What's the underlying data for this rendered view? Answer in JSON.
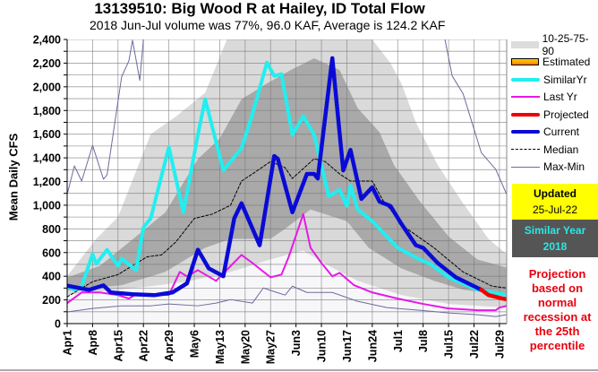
{
  "chart_data": {
    "type": "line",
    "title": "13139510: Big Wood R at Hailey, ID Total Flow",
    "subtitle": "2018 Jun-Jul volume was 77%, 96.0 KAF, Average is 124.2 KAF",
    "ylabel": "Mean Daily CFS",
    "xlabel": "",
    "x_unit": "days since Apr 1",
    "xlim": [
      0,
      121
    ],
    "ylim": [
      0,
      2400
    ],
    "y_ticks": [
      "0",
      "200",
      "400",
      "600",
      "800",
      "1,000",
      "1,200",
      "1,400",
      "1,600",
      "1,800",
      "2,000",
      "2,200",
      "2,400"
    ],
    "x_ticks": [
      "Apr1",
      "Apr8",
      "Apr15",
      "Apr22",
      "Apr29",
      "May6",
      "May13",
      "May20",
      "May27",
      "Jun3",
      "Jun10",
      "Jun17",
      "Jun24",
      "Jul1",
      "Jul8",
      "Jul15",
      "Jul22",
      "Jul29"
    ],
    "grid": true,
    "legend_position": "right",
    "bands": {
      "p10": [
        [
          0,
          241
        ],
        [
          23,
          316
        ],
        [
          33,
          354
        ],
        [
          45,
          436
        ],
        [
          56,
          542
        ],
        [
          65,
          617
        ],
        [
          72,
          489
        ],
        [
          80,
          361
        ],
        [
          92,
          241
        ],
        [
          105,
          166
        ],
        [
          121,
          135
        ]
      ],
      "p25": [
        [
          0,
          278
        ],
        [
          15,
          324
        ],
        [
          27,
          436
        ],
        [
          38,
          640
        ],
        [
          45,
          715
        ],
        [
          56,
          715
        ],
        [
          60,
          800
        ],
        [
          67,
          963
        ],
        [
          77,
          865
        ],
        [
          83,
          640
        ],
        [
          92,
          466
        ],
        [
          101,
          361
        ],
        [
          109,
          286
        ],
        [
          121,
          241
        ]
      ],
      "p75": [
        [
          0,
          390
        ],
        [
          9,
          489
        ],
        [
          19,
          737
        ],
        [
          27,
          940
        ],
        [
          36,
          1392
        ],
        [
          42,
          1565
        ],
        [
          48,
          1896
        ],
        [
          55,
          2030
        ],
        [
          62,
          2150
        ],
        [
          68,
          2242
        ],
        [
          75,
          2144
        ],
        [
          80,
          1821
        ],
        [
          86,
          1618
        ],
        [
          90,
          1340
        ],
        [
          97,
          1038
        ],
        [
          105,
          737
        ],
        [
          113,
          542
        ],
        [
          121,
          474
        ]
      ],
      "p90": [
        [
          0,
          400
        ],
        [
          8,
          715
        ],
        [
          14,
          900
        ],
        [
          23,
          1600
        ],
        [
          30,
          1750
        ],
        [
          38,
          1950
        ],
        [
          44,
          2400
        ],
        [
          84,
          2400
        ],
        [
          89,
          2200
        ],
        [
          92,
          2030
        ],
        [
          96,
          1700
        ],
        [
          102,
          1340
        ],
        [
          109,
          1016
        ],
        [
          116,
          715
        ],
        [
          121,
          587
        ]
      ]
    },
    "series": [
      {
        "name": "Max-Min",
        "role": "max",
        "color": "#6b6b9a",
        "points": [
          [
            0,
            1091
          ],
          [
            2,
            1332
          ],
          [
            4,
            1204
          ],
          [
            7,
            1505
          ],
          [
            10,
            1219
          ],
          [
            11,
            1257
          ],
          [
            15,
            2084
          ],
          [
            17,
            2220
          ],
          [
            18,
            2393
          ],
          [
            20,
            2054
          ],
          [
            21,
            2400
          ],
          [
            22,
            2600
          ],
          [
            103,
            2600
          ],
          [
            104,
            2400
          ],
          [
            106,
            2092
          ],
          [
            109,
            1941
          ],
          [
            114,
            1445
          ],
          [
            118,
            1302
          ],
          [
            121,
            1091
          ]
        ]
      },
      {
        "name": "Max-Min",
        "role": "min",
        "color": "#6b6b9a",
        "points": [
          [
            0,
            98
          ],
          [
            7,
            128
          ],
          [
            15,
            150
          ],
          [
            23,
            150
          ],
          [
            28,
            166
          ],
          [
            36,
            150
          ],
          [
            41,
            173
          ],
          [
            45,
            203
          ],
          [
            51,
            173
          ],
          [
            54,
            301
          ],
          [
            58,
            260
          ],
          [
            60,
            241
          ],
          [
            62,
            316
          ],
          [
            66,
            263
          ],
          [
            73,
            263
          ],
          [
            80,
            188
          ],
          [
            88,
            135
          ],
          [
            97,
            113
          ],
          [
            105,
            90
          ],
          [
            113,
            75
          ],
          [
            118,
            60
          ],
          [
            121,
            75
          ]
        ]
      },
      {
        "name": "Median",
        "color": "#000000",
        "points": [
          [
            0,
            226
          ],
          [
            7,
            354
          ],
          [
            14,
            414
          ],
          [
            22,
            564
          ],
          [
            26,
            580
          ],
          [
            30,
            692
          ],
          [
            35,
            888
          ],
          [
            40,
            925
          ],
          [
            45,
            1000
          ],
          [
            48,
            1204
          ],
          [
            51,
            1264
          ],
          [
            56,
            1369
          ],
          [
            60,
            1317
          ],
          [
            62,
            1226
          ],
          [
            68,
            1392
          ],
          [
            71,
            1369
          ],
          [
            75,
            1264
          ],
          [
            78,
            1204
          ],
          [
            84,
            1204
          ],
          [
            87,
            1038
          ],
          [
            93,
            813
          ],
          [
            101,
            640
          ],
          [
            109,
            436
          ],
          [
            117,
            316
          ],
          [
            121,
            301
          ]
        ]
      },
      {
        "name": "Last Yr",
        "color": "#e619e6",
        "points": [
          [
            0,
            173
          ],
          [
            4,
            263
          ],
          [
            9,
            263
          ],
          [
            14,
            241
          ],
          [
            17,
            211
          ],
          [
            19,
            248
          ],
          [
            23,
            248
          ],
          [
            28,
            241
          ],
          [
            31,
            436
          ],
          [
            33,
            399
          ],
          [
            36,
            451
          ],
          [
            41,
            361
          ],
          [
            48,
            580
          ],
          [
            51,
            512
          ],
          [
            56,
            391
          ],
          [
            59,
            414
          ],
          [
            61,
            564
          ],
          [
            65,
            925
          ],
          [
            67,
            640
          ],
          [
            70,
            512
          ],
          [
            73,
            399
          ],
          [
            75,
            429
          ],
          [
            79,
            324
          ],
          [
            84,
            263
          ],
          [
            91,
            211
          ],
          [
            98,
            166
          ],
          [
            105,
            128
          ],
          [
            113,
            113
          ],
          [
            118,
            113
          ],
          [
            119,
            135
          ],
          [
            121,
            150
          ]
        ]
      },
      {
        "name": "SimilarYr",
        "color": "#22eef0",
        "points": [
          [
            0,
            316
          ],
          [
            2,
            285
          ],
          [
            4,
            316
          ],
          [
            7,
            587
          ],
          [
            8,
            504
          ],
          [
            11,
            624
          ],
          [
            14,
            489
          ],
          [
            15,
            549
          ],
          [
            19,
            451
          ],
          [
            21,
            813
          ],
          [
            23,
            888
          ],
          [
            28,
            1490
          ],
          [
            32,
            940
          ],
          [
            36,
            1595
          ],
          [
            38,
            1896
          ],
          [
            43,
            1294
          ],
          [
            48,
            1482
          ],
          [
            51,
            1768
          ],
          [
            55,
            2205
          ],
          [
            57,
            2092
          ],
          [
            59,
            2107
          ],
          [
            62,
            1595
          ],
          [
            65,
            1753
          ],
          [
            68,
            1595
          ],
          [
            72,
            1076
          ],
          [
            75,
            1129
          ],
          [
            77,
            993
          ],
          [
            78,
            1166
          ],
          [
            80,
            963
          ],
          [
            84,
            865
          ],
          [
            91,
            640
          ],
          [
            97,
            542
          ],
          [
            100,
            504
          ],
          [
            105,
            391
          ],
          [
            113,
            286
          ],
          [
            121,
            241
          ]
        ]
      },
      {
        "name": "Current",
        "color": "#0a0ad6",
        "points": [
          [
            0,
            320
          ],
          [
            6,
            285
          ],
          [
            10,
            323
          ],
          [
            12,
            263
          ],
          [
            18,
            248
          ],
          [
            24,
            240
          ],
          [
            29,
            263
          ],
          [
            33,
            340
          ],
          [
            36,
            624
          ],
          [
            39,
            466
          ],
          [
            43,
            400
          ],
          [
            46,
            888
          ],
          [
            48,
            1016
          ],
          [
            53,
            662
          ],
          [
            57,
            1415
          ],
          [
            58,
            1392
          ],
          [
            62,
            940
          ],
          [
            66,
            1264
          ],
          [
            68,
            1264
          ],
          [
            69,
            1226
          ],
          [
            73,
            2242
          ],
          [
            76,
            1294
          ],
          [
            78,
            1467
          ],
          [
            81,
            1053
          ],
          [
            84,
            1151
          ],
          [
            86,
            1030
          ],
          [
            89,
            993
          ],
          [
            92,
            843
          ],
          [
            96,
            662
          ],
          [
            98,
            640
          ],
          [
            102,
            512
          ],
          [
            107,
            391
          ],
          [
            114,
            286
          ]
        ]
      },
      {
        "name": "Projected",
        "color": "#f00000",
        "points": [
          [
            114,
            286
          ],
          [
            116,
            241
          ],
          [
            120,
            211
          ],
          [
            121,
            205
          ]
        ]
      }
    ]
  },
  "legend": {
    "items": [
      {
        "label": "10-25-75-90",
        "swatch": "band",
        "color": "#dcdcdc"
      },
      {
        "label": "Estimated",
        "swatch": "estimated",
        "color": "#ffa500"
      },
      {
        "label": "SimilarYr",
        "swatch": "line",
        "color": "#22eef0"
      },
      {
        "label": "Last Yr",
        "swatch": "line",
        "color": "#e619e6"
      },
      {
        "label": "Projected",
        "swatch": "line",
        "color": "#f00000"
      },
      {
        "label": "Current",
        "swatch": "line",
        "color": "#0a0ad6"
      },
      {
        "label": "Median",
        "swatch": "dash",
        "color": "#000000"
      },
      {
        "label": "Max-Min",
        "swatch": "thin",
        "color": "#6b6b9a"
      }
    ]
  },
  "updated": {
    "label": "Updated",
    "date": "25-Jul-22"
  },
  "similar_year": {
    "label": "Similar Year",
    "year": "2018"
  },
  "projection_note": "Projection based on normal recession at the 25th percentile"
}
